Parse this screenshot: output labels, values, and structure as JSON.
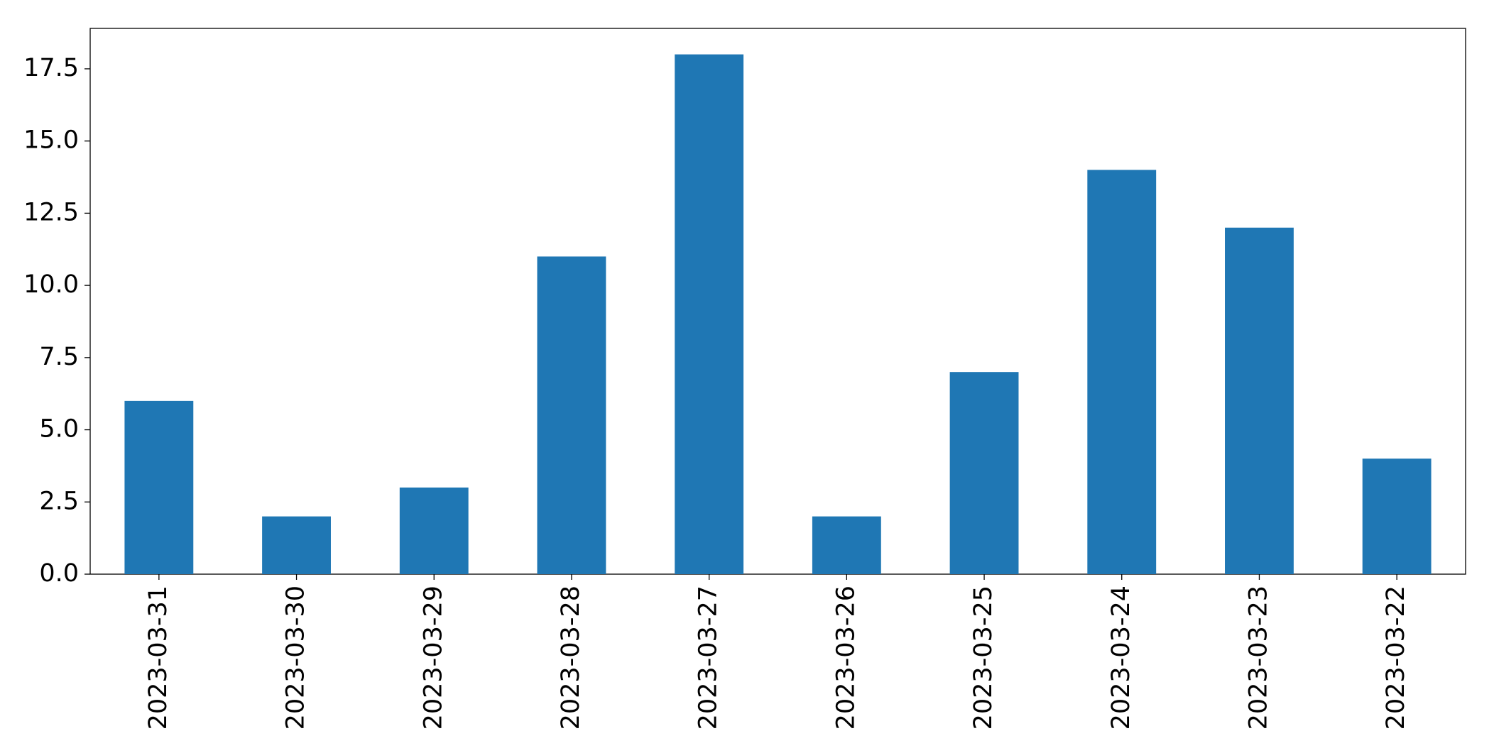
{
  "chart_data": {
    "type": "bar",
    "categories": [
      "2023-03-31",
      "2023-03-30",
      "2023-03-29",
      "2023-03-28",
      "2023-03-27",
      "2023-03-26",
      "2023-03-25",
      "2023-03-24",
      "2023-03-23",
      "2023-03-22"
    ],
    "values": [
      6,
      2,
      3,
      11,
      18,
      2,
      7,
      14,
      12,
      4
    ],
    "color": "#1f77b4",
    "ylim": [
      0,
      18.9
    ],
    "yticks": [
      {
        "value": 0,
        "label": "0.0"
      },
      {
        "value": 2.5,
        "label": "2.5"
      },
      {
        "value": 5,
        "label": "5.0"
      },
      {
        "value": 7.5,
        "label": "7.5"
      },
      {
        "value": 10,
        "label": "10.0"
      },
      {
        "value": 12.5,
        "label": "12.5"
      },
      {
        "value": 15,
        "label": "15.0"
      },
      {
        "value": 17.5,
        "label": "17.5"
      }
    ],
    "grid": false
  }
}
